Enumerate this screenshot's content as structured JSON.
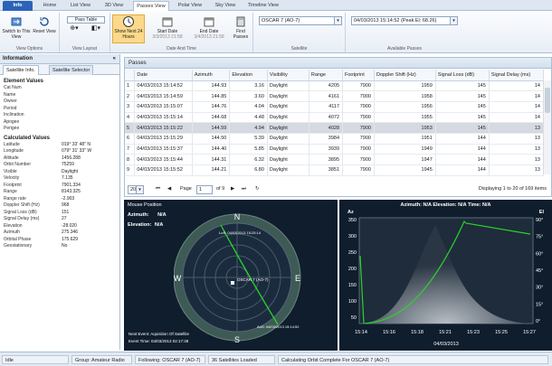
{
  "tabs": [
    "Info",
    "Home",
    "List View",
    "3D View",
    "Passes View",
    "Polar View",
    "Sky View",
    "Timeline View"
  ],
  "ribbon": {
    "view_options": {
      "switch_label": "Switch to This View",
      "reset_label": "Reset View",
      "group": "View Options"
    },
    "view_layout": {
      "pass_table": "Pass Table",
      "group": "View Layout"
    },
    "date_time": {
      "show_next": "Show Next 24 Hours",
      "start_date": "Start Date",
      "start_value": "3/3/2013 21:58",
      "end_date": "End Date",
      "end_value": "3/4/2013 21:58",
      "find_passes": "Find Passes",
      "group": "Date And Time"
    },
    "satellite": {
      "selected": "OSCAR 7 (AO-7)",
      "group": "Satellite"
    },
    "available_passes": {
      "selected": "04/03/2013 15:14:52 (Peak El: 68.26)",
      "group": "Available Passes"
    }
  },
  "left_panel": {
    "title": "Information",
    "tab_info": "Satellite Info.",
    "tab_selector": "Satellite Selector",
    "element_values_title": "Element Values",
    "element_values": [
      {
        "k": "Cat Num",
        "v": ""
      },
      {
        "k": "Name",
        "v": ""
      },
      {
        "k": "Owner",
        "v": ""
      },
      {
        "k": "Period",
        "v": ""
      },
      {
        "k": "Inclination",
        "v": ""
      },
      {
        "k": "Apogee",
        "v": ""
      },
      {
        "k": "Perigee",
        "v": ""
      }
    ],
    "calculated_values_title": "Calculated Values",
    "calculated_values": [
      {
        "k": "Latitude",
        "v": "019° 33' 48\" N"
      },
      {
        "k": "Longitude",
        "v": "079° 31' 33\" W"
      },
      {
        "k": "Altitude",
        "v": "1456.288"
      },
      {
        "k": "Orbit Number",
        "v": "75259"
      },
      {
        "k": "Visible",
        "v": "Daylight"
      },
      {
        "k": "Velocity",
        "v": "7.135"
      },
      {
        "k": "Footprint",
        "v": "7901.334"
      },
      {
        "k": "Range",
        "v": "8143.325"
      },
      {
        "k": "Range rate",
        "v": "-2.903"
      },
      {
        "k": "Doppler Shift (Hz)",
        "v": "968"
      },
      {
        "k": "Signal Loss (dB)",
        "v": "151"
      },
      {
        "k": "Signal Delay (ms)",
        "v": "27"
      },
      {
        "k": "Elevation",
        "v": "-28.020"
      },
      {
        "k": "Azimuth",
        "v": "275.346"
      },
      {
        "k": "Orbital Phase",
        "v": "175.629"
      },
      {
        "k": "Geostationary",
        "v": "No"
      }
    ]
  },
  "passes": {
    "title": "Passes",
    "columns": [
      "",
      "Date",
      "Azimuth",
      "Elevation",
      "Visibility",
      "Range",
      "Footprint",
      "Doppler Shift (Hz)",
      "Signal Loss (dB)",
      "Signal Delay (ms)"
    ],
    "rows": [
      [
        "1",
        "04/03/2013 15:14:52",
        "144.93",
        "3.16",
        "Daylight",
        "4205",
        "7900",
        "1959",
        "145",
        "14"
      ],
      [
        "2",
        "04/03/2013 15:14:59",
        "144.85",
        "3.60",
        "Daylight",
        "4161",
        "7900",
        "1958",
        "145",
        "14"
      ],
      [
        "3",
        "04/03/2013 15:15:07",
        "144.76",
        "4.04",
        "Daylight",
        "4117",
        "7900",
        "1956",
        "145",
        "14"
      ],
      [
        "4",
        "04/03/2013 15:15:14",
        "144.68",
        "4.48",
        "Daylight",
        "4072",
        "7900",
        "1955",
        "145",
        "14"
      ],
      [
        "5",
        "04/03/2013 15:15:22",
        "144.59",
        "4.94",
        "Daylight",
        "4028",
        "7900",
        "1953",
        "145",
        "13"
      ],
      [
        "6",
        "04/03/2013 15:15:29",
        "144.50",
        "5.39",
        "Daylight",
        "3984",
        "7900",
        "1951",
        "144",
        "13"
      ],
      [
        "7",
        "04/03/2013 15:15:37",
        "144.40",
        "5.85",
        "Daylight",
        "3939",
        "7900",
        "1949",
        "144",
        "13"
      ],
      [
        "8",
        "04/03/2013 15:15:44",
        "144.31",
        "6.32",
        "Daylight",
        "3895",
        "7900",
        "1947",
        "144",
        "13"
      ],
      [
        "9",
        "04/03/2013 15:15:52",
        "144.21",
        "6.80",
        "Daylight",
        "3851",
        "7900",
        "1945",
        "144",
        "13"
      ]
    ],
    "selected_row": 4,
    "page_size": "20",
    "page_label": "Page",
    "page_value": "1",
    "page_of": "of 9",
    "display_info": "Displaying 1 to 20 of 169 items"
  },
  "polar": {
    "title": "Mouse Position",
    "azimuth_label": "Azimuth:",
    "azimuth_value": "N/A",
    "elevation_label": "Elevation:",
    "elevation_value": "N/A",
    "compass": [
      "N",
      "E",
      "S",
      "W"
    ],
    "sat_label": "OSCAR 7 (AO-7)",
    "aos_label": "AoS: 04/03/2013 15:14:52",
    "los_label": "LoS: 04/03/2013 15:25:14",
    "next_event": "Next Event: Aquisition Of Satellite",
    "event_time": "Event Time: 04/03/2013 02:17:38",
    "track_color": "#2bd32b"
  },
  "elevation_chart": {
    "header": "Azimuth: N/A  Elevation: N/A  Time: N/A",
    "left_axis_title": "Az",
    "right_axis_title": "El",
    "left_ticks": [
      "350",
      "300",
      "250",
      "200",
      "150",
      "100",
      "50"
    ],
    "right_ticks": [
      "90°",
      "75°",
      "60°",
      "45°",
      "30°",
      "15°",
      "0°"
    ],
    "x_ticks": [
      "15:14",
      "15:16",
      "15:18",
      "15:21",
      "15:23",
      "15:25",
      "15:27"
    ],
    "date": "04/03/2013"
  },
  "status": [
    "Idle",
    "Group: Amateur Radio",
    "Following: OSCAR 7 (AO-7)",
    "36 Satellites Loaded",
    "Calculating Orbit Complete For OSCAR 7 (AO-7)"
  ]
}
